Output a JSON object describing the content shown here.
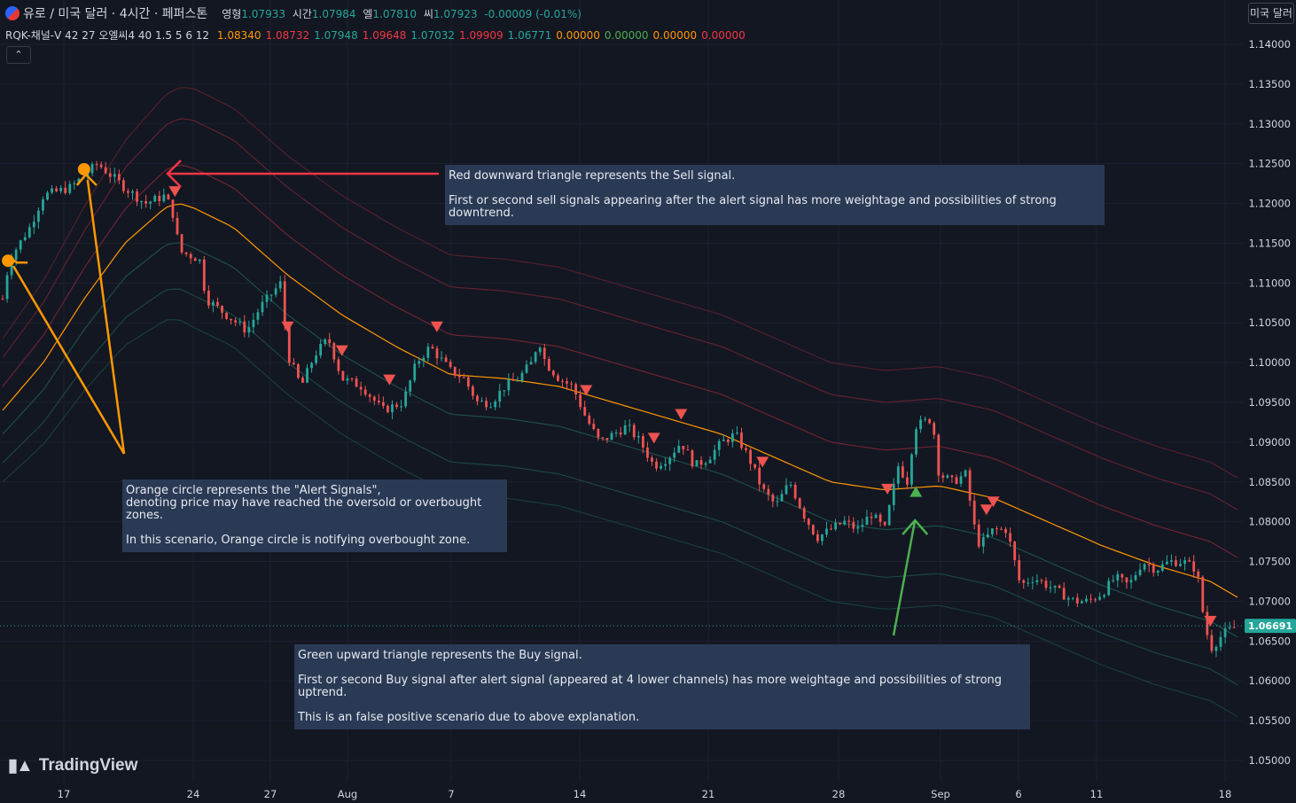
{
  "header": {
    "symbol": "유로 / 미국 달러 · 4시간 · 페퍼스톤",
    "ohlc": [
      {
        "k": "영형",
        "v": "1.07933"
      },
      {
        "k": "시간",
        "v": "1.07984"
      },
      {
        "k": "엘",
        "v": "1.07810"
      },
      {
        "k": "씨",
        "v": "1.07923"
      }
    ],
    "change": "-0.00009 (-0.01%)",
    "currency_button": "미국 달러"
  },
  "indicator": {
    "name": "RQK-채널-V 42 27 오엘씨4 40 1.5 5 6 12",
    "values": [
      {
        "v": "1.08340",
        "c": "#ff9800"
      },
      {
        "v": "1.08732",
        "c": "#f23645"
      },
      {
        "v": "1.07948",
        "c": "#26a69a"
      },
      {
        "v": "1.09648",
        "c": "#f23645"
      },
      {
        "v": "1.07032",
        "c": "#26a69a"
      },
      {
        "v": "1.09909",
        "c": "#f23645"
      },
      {
        "v": "1.06771",
        "c": "#26a69a"
      },
      {
        "v": "0.00000",
        "c": "#ff9800"
      },
      {
        "v": "0.00000",
        "c": "#4caf50"
      },
      {
        "v": "0.00000",
        "c": "#ff9800"
      },
      {
        "v": "0.00000",
        "c": "#f23645"
      }
    ],
    "collapse_icon": "chevron-up-icon"
  },
  "notes": {
    "sell": [
      "Red downward triangle represents the Sell signal.",
      "First or second sell signals appearing after the alert signal has more weightage and possibilities of strong downtrend."
    ],
    "alert": [
      "Orange circle represents the \"Alert Signals\",",
      "denoting price may have reached the oversold or overbought zones.",
      "In this scenario, Orange circle is notifying overbought zone."
    ],
    "buy": [
      "Green upward triangle represents the Buy signal.",
      "First or second Buy signal after alert signal (appeared at 4 lower channels) has more weightage and possibilities of strong uptrend.",
      "This is an false positive scenario due to above explanation."
    ]
  },
  "logo": "TradingView",
  "colors": {
    "up": "#26a69a",
    "down": "#ef5350",
    "mid": "#ff9800",
    "upper": "#f23645",
    "lower": "#26a69a",
    "buy": "#4caf50",
    "alert": "#ff9800",
    "note_bg": "#2a3a55"
  },
  "chart_data": {
    "type": "candlestick",
    "symbol": "EUR/USD 4h",
    "x_ticks": [
      "17",
      "24",
      "27",
      "Aug",
      "7",
      "14",
      "21",
      "28",
      "Sep",
      "6",
      "11",
      "18"
    ],
    "y_ticks": [
      "1.14000",
      "1.13500",
      "1.13000",
      "1.12500",
      "1.12000",
      "1.11500",
      "1.11000",
      "1.10500",
      "1.10000",
      "1.09500",
      "1.09000",
      "1.08500",
      "1.08000",
      "1.07500",
      "1.07000",
      "1.06500",
      "1.06000",
      "1.05500",
      "1.05000"
    ],
    "ylim": [
      1.0495,
      1.1415
    ],
    "last_price": "1.06691",
    "price_path": [
      {
        "t": 0,
        "p": 1.108
      },
      {
        "t": 0.5,
        "p": 1.113
      },
      {
        "t": 2,
        "p": 1.117
      },
      {
        "t": 3,
        "p": 1.121
      },
      {
        "t": 5,
        "p": 1.122
      },
      {
        "t": 7,
        "p": 1.125
      },
      {
        "t": 9,
        "p": 1.122
      },
      {
        "t": 10.5,
        "p": 1.12
      },
      {
        "t": 12,
        "p": 1.121
      },
      {
        "t": 12.7,
        "p": 1.118
      },
      {
        "t": 13,
        "p": 1.114
      },
      {
        "t": 14.5,
        "p": 1.113
      },
      {
        "t": 15,
        "p": 1.108
      },
      {
        "t": 16.5,
        "p": 1.106
      },
      {
        "t": 18,
        "p": 1.104
      },
      {
        "t": 19,
        "p": 1.107
      },
      {
        "t": 20,
        "p": 1.109
      },
      {
        "t": 20.5,
        "p": 1.11
      },
      {
        "t": 21,
        "p": 1.101
      },
      {
        "t": 22,
        "p": 1.097
      },
      {
        "t": 23,
        "p": 1.101
      },
      {
        "t": 24,
        "p": 1.103
      },
      {
        "t": 25,
        "p": 1.098
      },
      {
        "t": 26.5,
        "p": 1.097
      },
      {
        "t": 28,
        "p": 1.094
      },
      {
        "t": 29.5,
        "p": 1.095
      },
      {
        "t": 30.5,
        "p": 1.1
      },
      {
        "t": 31.5,
        "p": 1.102
      },
      {
        "t": 33,
        "p": 1.099
      },
      {
        "t": 34,
        "p": 1.098
      },
      {
        "t": 35,
        "p": 1.095
      },
      {
        "t": 36,
        "p": 1.095
      },
      {
        "t": 37,
        "p": 1.097
      },
      {
        "t": 38,
        "p": 1.098
      },
      {
        "t": 39,
        "p": 1.1
      },
      {
        "t": 39.5,
        "p": 1.103
      },
      {
        "t": 40,
        "p": 1.1
      },
      {
        "t": 41,
        "p": 1.098
      },
      {
        "t": 42,
        "p": 1.097
      },
      {
        "t": 43,
        "p": 1.093
      },
      {
        "t": 44,
        "p": 1.09
      },
      {
        "t": 45,
        "p": 1.091
      },
      {
        "t": 46,
        "p": 1.092
      },
      {
        "t": 47,
        "p": 1.09
      },
      {
        "t": 48,
        "p": 1.087
      },
      {
        "t": 49,
        "p": 1.088
      },
      {
        "t": 50,
        "p": 1.09
      },
      {
        "t": 51,
        "p": 1.087
      },
      {
        "t": 52,
        "p": 1.088
      },
      {
        "t": 53,
        "p": 1.09
      },
      {
        "t": 54,
        "p": 1.091
      },
      {
        "t": 55,
        "p": 1.088
      },
      {
        "t": 56,
        "p": 1.084
      },
      {
        "t": 57,
        "p": 1.082
      },
      {
        "t": 58,
        "p": 1.085
      },
      {
        "t": 59,
        "p": 1.081
      },
      {
        "t": 60,
        "p": 1.078
      },
      {
        "t": 61,
        "p": 1.079
      },
      {
        "t": 62,
        "p": 1.08
      },
      {
        "t": 63,
        "p": 1.079
      },
      {
        "t": 64,
        "p": 1.081
      },
      {
        "t": 65,
        "p": 1.079
      },
      {
        "t": 65.5,
        "p": 1.083
      },
      {
        "t": 66,
        "p": 1.087
      },
      {
        "t": 66.7,
        "p": 1.085
      },
      {
        "t": 67.2,
        "p": 1.092
      },
      {
        "t": 68.5,
        "p": 1.093
      },
      {
        "t": 69,
        "p": 1.086
      },
      {
        "t": 70,
        "p": 1.085
      },
      {
        "t": 71,
        "p": 1.086
      },
      {
        "t": 71.5,
        "p": 1.08
      },
      {
        "t": 72,
        "p": 1.077
      },
      {
        "t": 73,
        "p": 1.079
      },
      {
        "t": 74,
        "p": 1.079
      },
      {
        "t": 75,
        "p": 1.072
      },
      {
        "t": 76,
        "p": 1.073
      },
      {
        "t": 77,
        "p": 1.072
      },
      {
        "t": 78,
        "p": 1.071
      },
      {
        "t": 79,
        "p": 1.07
      },
      {
        "t": 80,
        "p": 1.07
      },
      {
        "t": 81,
        "p": 1.071
      },
      {
        "t": 82,
        "p": 1.073
      },
      {
        "t": 83,
        "p": 1.072
      },
      {
        "t": 84,
        "p": 1.075
      },
      {
        "t": 85,
        "p": 1.074
      },
      {
        "t": 86,
        "p": 1.075
      },
      {
        "t": 87,
        "p": 1.075
      },
      {
        "t": 88,
        "p": 1.074
      },
      {
        "t": 88.5,
        "p": 1.068
      },
      {
        "t": 89,
        "p": 1.064
      },
      {
        "t": 89.5,
        "p": 1.065
      },
      {
        "t": 90,
        "p": 1.066
      },
      {
        "t": 91,
        "p": 1.0669
      }
    ],
    "mid_path": [
      {
        "t": 0,
        "p": 1.094
      },
      {
        "t": 3,
        "p": 1.1
      },
      {
        "t": 6,
        "p": 1.108
      },
      {
        "t": 9,
        "p": 1.115
      },
      {
        "t": 12,
        "p": 1.1195
      },
      {
        "t": 13,
        "p": 1.12
      },
      {
        "t": 14,
        "p": 1.1195
      },
      {
        "t": 17,
        "p": 1.117
      },
      {
        "t": 21,
        "p": 1.111
      },
      {
        "t": 25,
        "p": 1.106
      },
      {
        "t": 29,
        "p": 1.102
      },
      {
        "t": 33,
        "p": 1.0985
      },
      {
        "t": 37,
        "p": 1.098
      },
      {
        "t": 41,
        "p": 1.097
      },
      {
        "t": 45,
        "p": 1.095
      },
      {
        "t": 49,
        "p": 1.093
      },
      {
        "t": 53,
        "p": 1.091
      },
      {
        "t": 57,
        "p": 1.088
      },
      {
        "t": 61,
        "p": 1.085
      },
      {
        "t": 65,
        "p": 1.084
      },
      {
        "t": 69,
        "p": 1.0845
      },
      {
        "t": 73,
        "p": 1.083
      },
      {
        "t": 77,
        "p": 1.08
      },
      {
        "t": 81,
        "p": 1.077
      },
      {
        "t": 85,
        "p": 1.0745
      },
      {
        "t": 89,
        "p": 1.0725
      },
      {
        "t": 91,
        "p": 1.0705
      }
    ],
    "channels": {
      "upper": [
        0.005,
        0.011,
        0.015
      ],
      "lower": [
        -0.005,
        -0.011,
        -0.015
      ]
    },
    "sell_signals_t": [
      12.7,
      21,
      25,
      28.5,
      32,
      43,
      48,
      50,
      56,
      65.2,
      72.5,
      73,
      89
    ],
    "buy_signals_t": [
      67.3
    ],
    "alert_signals_t": [
      0.4,
      6
    ]
  }
}
